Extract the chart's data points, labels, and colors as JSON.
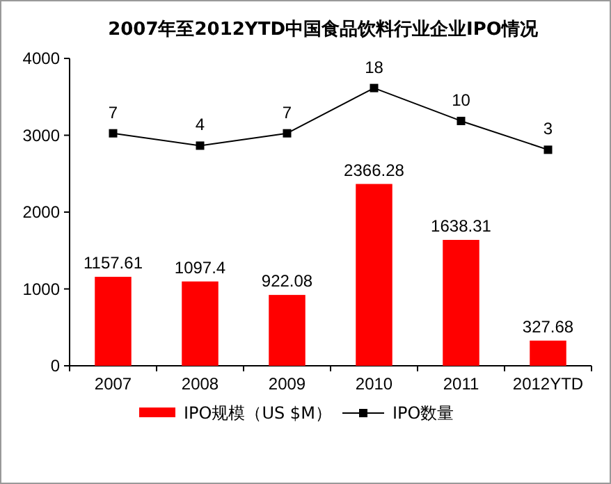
{
  "chart_data": {
    "type": "bar",
    "title": "2007年至2012YTD中国食品饮料行业企业IPO情况",
    "categories": [
      "2007",
      "2008",
      "2009",
      "2010",
      "2011",
      "2012YTD"
    ],
    "series": [
      {
        "name": "IPO规模（US $M）",
        "color": "#ff0000",
        "values": [
          1157.61,
          1097.4,
          922.08,
          2366.28,
          1638.31,
          327.68
        ]
      },
      {
        "name": "IPO数量",
        "type": "line",
        "axis": "y2",
        "color": "#000000",
        "marker": "square",
        "values": [
          7,
          4,
          7,
          18,
          10,
          3
        ]
      }
    ],
    "ylim": [
      0,
      4000
    ],
    "yticks": [
      0,
      1000,
      2000,
      3000,
      4000
    ],
    "y2lim": [
      -49.5,
      25.2
    ],
    "data_labels": true,
    "grid": false,
    "legend": "bottom"
  }
}
